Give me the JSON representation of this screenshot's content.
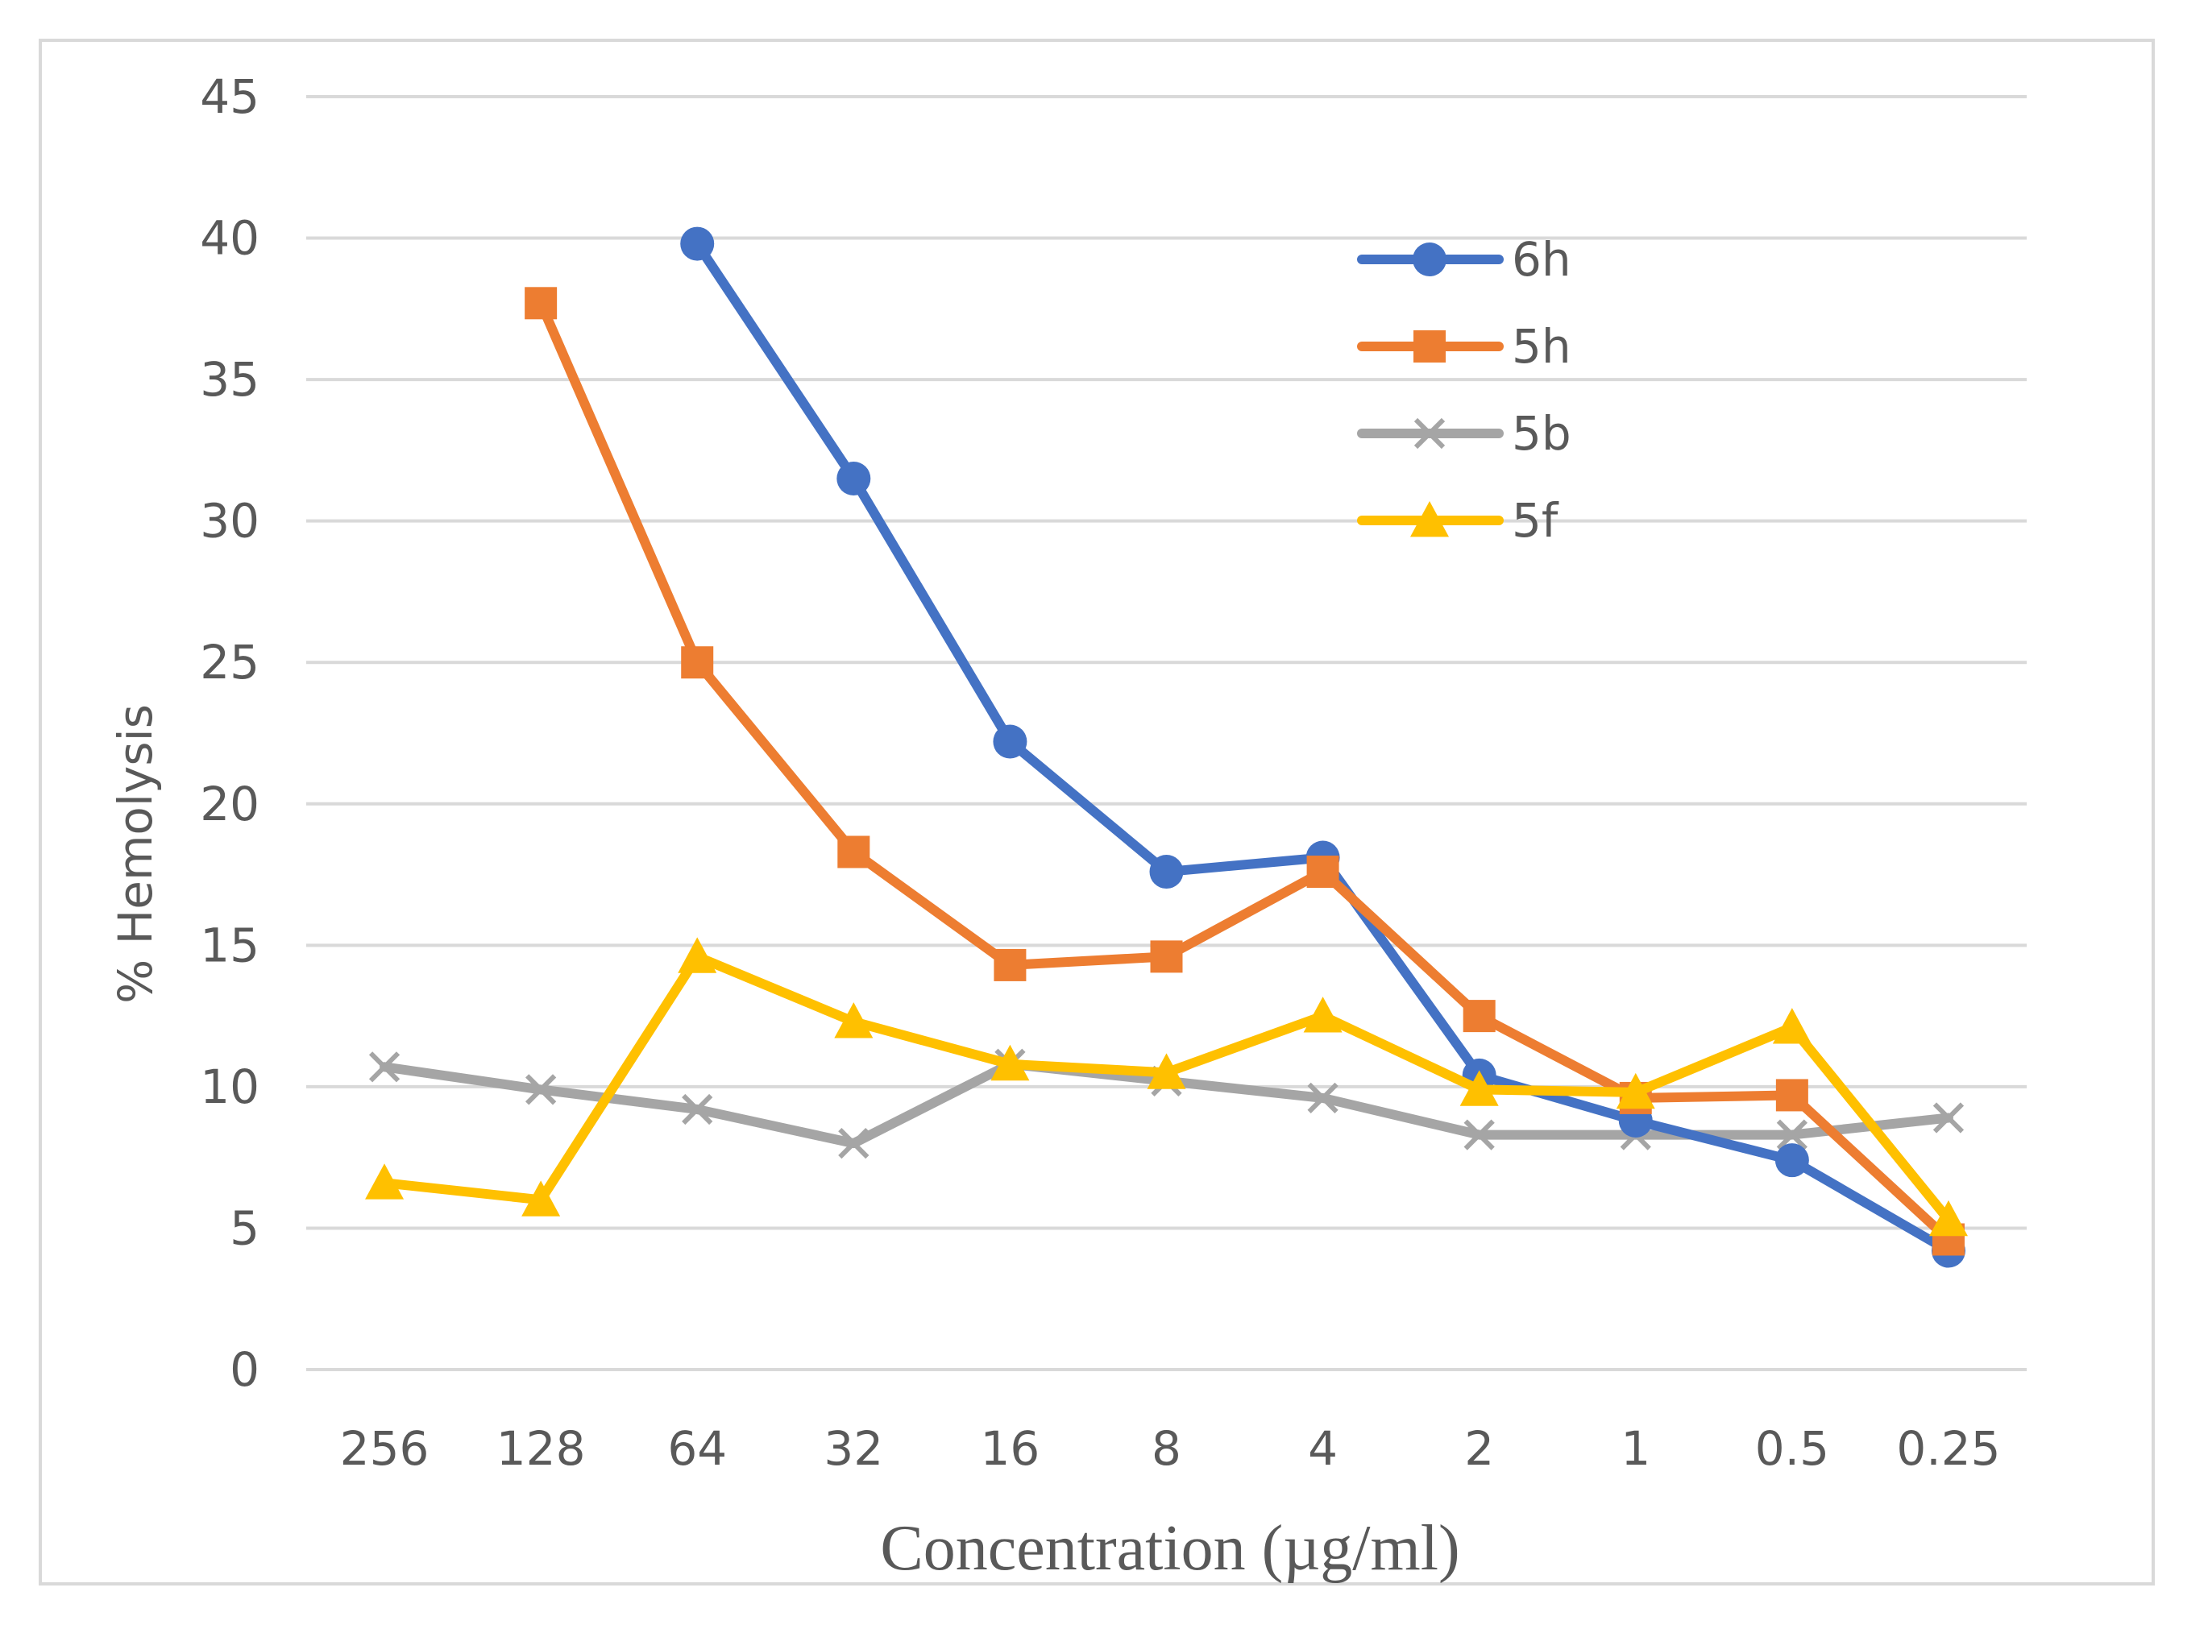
{
  "chart_data": {
    "type": "line",
    "title": "",
    "xlabel": "Concentration (µg/ml)",
    "ylabel": "% Hemolysis",
    "categories": [
      "256",
      "128",
      "64",
      "32",
      "16",
      "8",
      "4",
      "2",
      "1",
      "0.5",
      "0.25"
    ],
    "ylim": [
      0,
      45
    ],
    "yticks": [
      0,
      5,
      10,
      15,
      20,
      25,
      30,
      35,
      40,
      45
    ],
    "grid": true,
    "legend_position": "top-right",
    "series": [
      {
        "name": "6h",
        "color": "#4472c4",
        "marker": "circle",
        "values": [
          null,
          null,
          39.8,
          31.5,
          22.2,
          17.6,
          18.1,
          10.4,
          8.8,
          7.4,
          4.2
        ]
      },
      {
        "name": "5h",
        "color": "#ed7d31",
        "marker": "square",
        "values": [
          null,
          37.7,
          25.0,
          18.3,
          14.3,
          14.6,
          17.6,
          12.5,
          9.6,
          9.7,
          4.6
        ]
      },
      {
        "name": "5b",
        "color": "#a5a5a5",
        "marker": "x",
        "values": [
          10.7,
          9.9,
          9.2,
          8.0,
          10.8,
          10.2,
          9.6,
          8.3,
          8.3,
          8.3,
          8.9
        ]
      },
      {
        "name": "5f",
        "color": "#ffc000",
        "marker": "triangle",
        "values": [
          6.6,
          6.0,
          14.6,
          12.3,
          10.8,
          10.5,
          12.5,
          9.9,
          9.8,
          12.1,
          5.3
        ]
      }
    ]
  }
}
